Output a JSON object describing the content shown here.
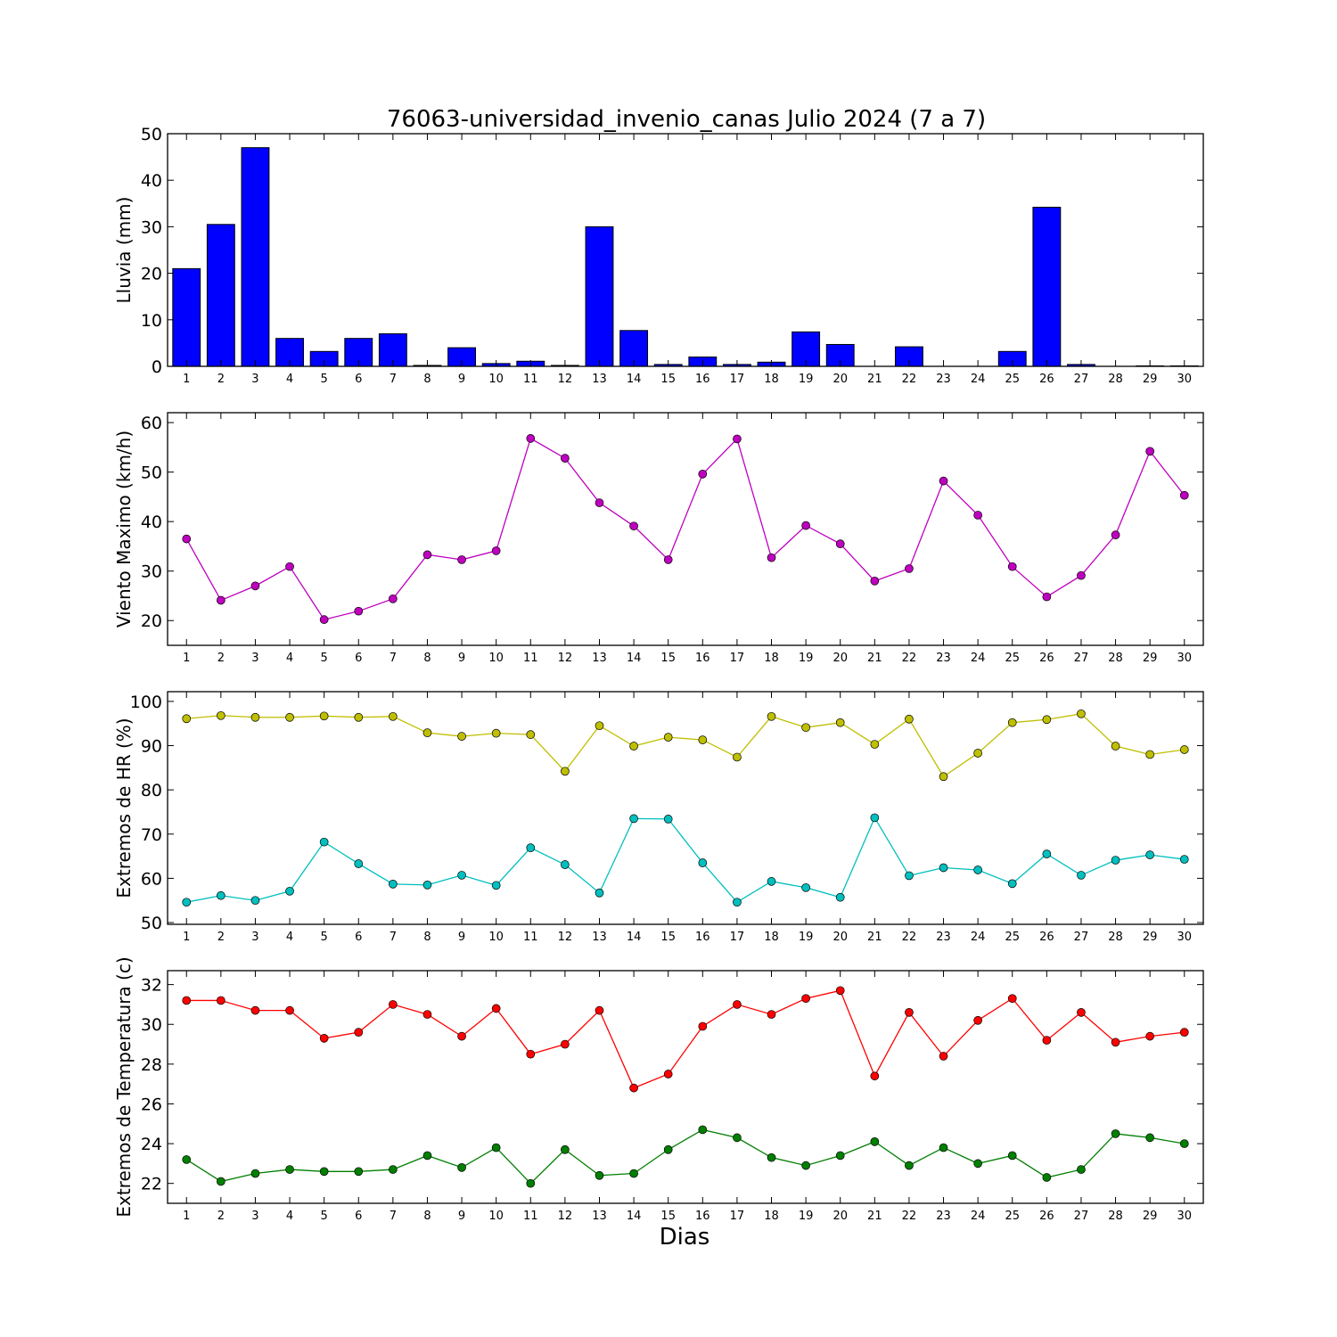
{
  "figure": {
    "title": "76063-universidad_invenio_canas Julio 2024  (7 a 7)",
    "xlabel": "Dias"
  },
  "chart_data": [
    {
      "type": "bar",
      "ylabel": "Lluvia (mm)",
      "categories": [
        "1",
        "2",
        "3",
        "4",
        "5",
        "6",
        "7",
        "8",
        "9",
        "10",
        "11",
        "12",
        "13",
        "14",
        "15",
        "16",
        "17",
        "18",
        "19",
        "20",
        "21",
        "22",
        "23",
        "24",
        "25",
        "26",
        "27",
        "28",
        "29",
        "30"
      ],
      "values": [
        21.0,
        30.5,
        47.0,
        6.0,
        3.2,
        6.0,
        7.0,
        0.2,
        4.0,
        0.6,
        1.1,
        0.2,
        30.0,
        7.7,
        0.4,
        2.0,
        0.4,
        0.9,
        7.4,
        4.7,
        0,
        4.2,
        0,
        0,
        3.2,
        34.2,
        0.4,
        0,
        0.1,
        0.1
      ],
      "ylim": [
        0,
        50
      ],
      "yticks": [
        0,
        10,
        20,
        30,
        40,
        50
      ],
      "color": "#0000ff"
    },
    {
      "type": "line",
      "ylabel": "Viento Maximo (km/h)",
      "categories": [
        "1",
        "2",
        "3",
        "4",
        "5",
        "6",
        "7",
        "8",
        "9",
        "10",
        "11",
        "12",
        "13",
        "14",
        "15",
        "16",
        "17",
        "18",
        "19",
        "20",
        "21",
        "22",
        "23",
        "24",
        "25",
        "26",
        "27",
        "28",
        "29",
        "30"
      ],
      "series": [
        {
          "color": "#bf00bf",
          "values": [
            36.5,
            24.1,
            27.0,
            30.9,
            20.2,
            21.9,
            24.4,
            33.3,
            32.3,
            34.1,
            56.8,
            52.8,
            43.8,
            39.1,
            32.3,
            49.6,
            56.7,
            32.7,
            39.2,
            35.5,
            28.0,
            30.5,
            48.2,
            41.3,
            30.9,
            24.8,
            29.1,
            37.3,
            54.2,
            45.3
          ]
        }
      ],
      "ylim": [
        15,
        62
      ],
      "yticks": [
        20,
        30,
        40,
        50,
        60
      ]
    },
    {
      "type": "line",
      "ylabel": "Extremos de HR (%)",
      "categories": [
        "1",
        "2",
        "3",
        "4",
        "5",
        "6",
        "7",
        "8",
        "9",
        "10",
        "11",
        "12",
        "13",
        "14",
        "15",
        "16",
        "17",
        "18",
        "19",
        "20",
        "21",
        "22",
        "23",
        "24",
        "25",
        "26",
        "27",
        "28",
        "29",
        "30"
      ],
      "series": [
        {
          "color": "#bfbf00",
          "values": [
            96.1,
            96.8,
            96.4,
            96.4,
            96.7,
            96.4,
            96.6,
            92.9,
            92.1,
            92.8,
            92.5,
            84.2,
            94.5,
            89.9,
            91.9,
            91.3,
            87.4,
            96.6,
            94.1,
            95.2,
            90.3,
            96.0,
            83.0,
            88.3,
            95.2,
            95.9,
            97.2,
            89.9,
            88.0,
            89.1
          ]
        },
        {
          "color": "#00bfbf",
          "values": [
            54.6,
            56.1,
            55.0,
            57.1,
            68.2,
            63.3,
            58.7,
            58.5,
            60.7,
            58.4,
            66.9,
            63.1,
            56.7,
            73.5,
            73.4,
            63.5,
            54.6,
            59.3,
            57.9,
            55.7,
            73.7,
            60.6,
            62.4,
            61.9,
            58.8,
            65.5,
            60.7,
            64.1,
            65.3,
            64.3
          ]
        }
      ],
      "ylim": [
        49.6,
        102.2
      ],
      "yticks": [
        50,
        60,
        70,
        80,
        90,
        100
      ]
    },
    {
      "type": "line",
      "ylabel": "Extremos de Temperatura (c)",
      "categories": [
        "1",
        "2",
        "3",
        "4",
        "5",
        "6",
        "7",
        "8",
        "9",
        "10",
        "11",
        "12",
        "13",
        "14",
        "15",
        "16",
        "17",
        "18",
        "19",
        "20",
        "21",
        "22",
        "23",
        "24",
        "25",
        "26",
        "27",
        "28",
        "29",
        "30"
      ],
      "series": [
        {
          "color": "#ff0000",
          "values": [
            31.2,
            31.2,
            30.7,
            30.7,
            29.3,
            29.6,
            31.0,
            30.5,
            29.4,
            30.8,
            28.5,
            29.0,
            30.7,
            26.8,
            27.5,
            29.9,
            31.0,
            30.5,
            31.3,
            31.7,
            27.4,
            30.6,
            28.4,
            30.2,
            31.3,
            29.2,
            30.6,
            29.1,
            29.4,
            29.6
          ]
        },
        {
          "color": "#007f00",
          "values": [
            23.2,
            22.1,
            22.5,
            22.7,
            22.6,
            22.6,
            22.7,
            23.4,
            22.8,
            23.8,
            22.0,
            23.7,
            22.4,
            22.5,
            23.7,
            24.7,
            24.3,
            23.3,
            22.9,
            23.4,
            24.1,
            22.9,
            23.8,
            23.0,
            23.4,
            22.3,
            22.7,
            24.5,
            24.3,
            24.0
          ]
        }
      ],
      "ylim": [
        21,
        32.7
      ],
      "yticks": [
        22,
        24,
        26,
        28,
        30,
        32
      ]
    }
  ]
}
